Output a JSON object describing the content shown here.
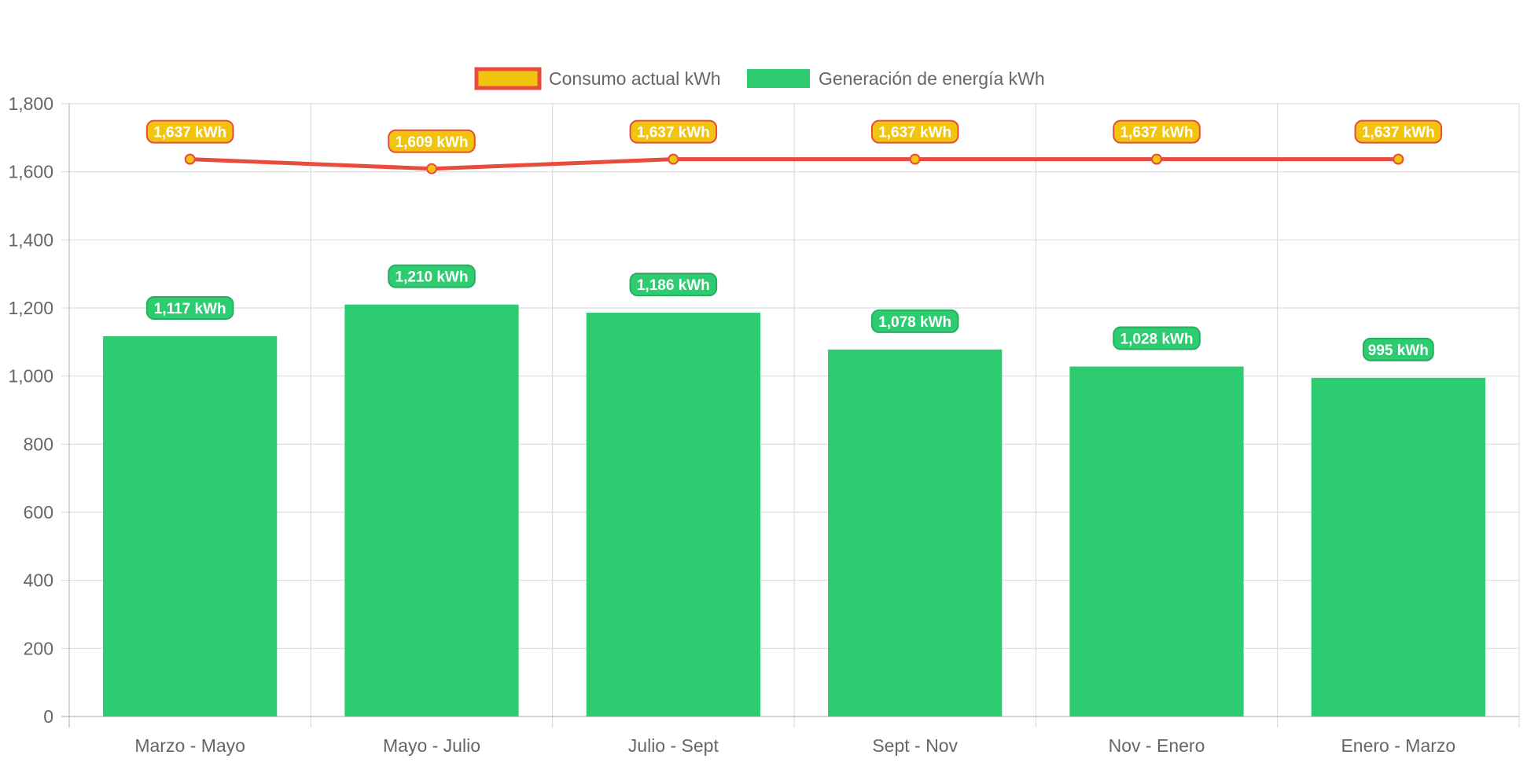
{
  "chart_data": {
    "type": "bar",
    "categories": [
      "Marzo - Mayo",
      "Mayo - Julio",
      "Julio - Sept",
      "Sept - Nov",
      "Nov - Enero",
      "Enero - Marzo"
    ],
    "series": [
      {
        "name": "Consumo actual kWh",
        "type": "line",
        "values": [
          1637,
          1609,
          1637,
          1637,
          1637,
          1637
        ],
        "data_labels": [
          "1,637 kWh",
          "1,609 kWh",
          "1,637 kWh",
          "1,637 kWh",
          "1,637 kWh",
          "1,637 kWh"
        ],
        "line_color": "#e74c3c",
        "fill_color": "#f1c40f"
      },
      {
        "name": "Generación de energía kWh",
        "type": "bar",
        "values": [
          1117,
          1210,
          1186,
          1078,
          1028,
          995
        ],
        "data_labels": [
          "1,117 kWh",
          "1,210 kWh",
          "1,186 kWh",
          "1,078 kWh",
          "1,028 kWh",
          "995 kWh"
        ],
        "color": "#2ecc71"
      }
    ],
    "y_ticks": [
      "0",
      "200",
      "400",
      "600",
      "800",
      "1,000",
      "1,200",
      "1,400",
      "1,600",
      "1,800"
    ],
    "ylim": [
      0,
      1800
    ],
    "title": "",
    "xlabel": "",
    "ylabel": "",
    "grid": true,
    "legend_position": "top"
  }
}
